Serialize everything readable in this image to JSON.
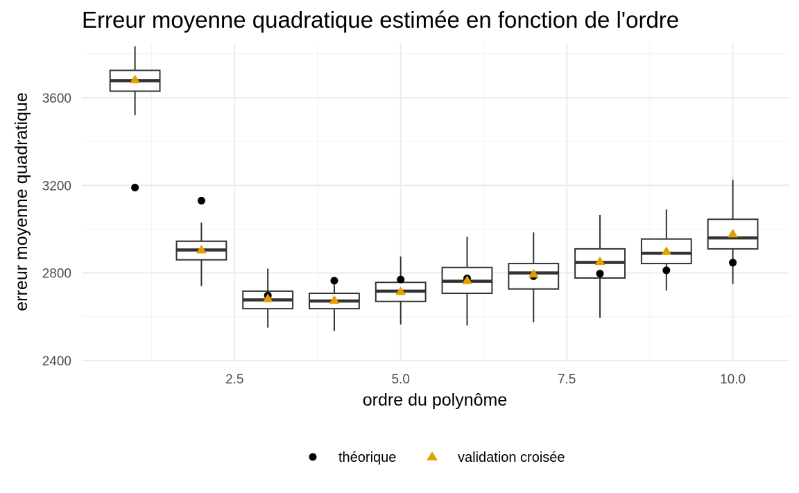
{
  "chart_data": {
    "type": "box",
    "title": "Erreur moyenne quadratique estimée en fonction de l'ordre",
    "xlabel": "ordre du polynôme",
    "ylabel": "erreur moyenne quadratique",
    "xlim": [
      0.2,
      10.85
    ],
    "ylim": [
      2400,
      3850
    ],
    "x_ticks": [
      2.5,
      5.0,
      7.5,
      10.0
    ],
    "x_tick_labels": [
      "2.5",
      "5.0",
      "7.5",
      "10.0"
    ],
    "y_ticks": [
      2400,
      2800,
      3200,
      3600
    ],
    "y_tick_labels": [
      "2400",
      "2800",
      "3200",
      "3600"
    ],
    "grid": true,
    "legend_position": "bottom",
    "boxes": [
      {
        "x": 1,
        "whisker_low": 3520,
        "q1": 3630,
        "median": 3678,
        "q3": 3725,
        "whisker_high": 3835
      },
      {
        "x": 2,
        "whisker_low": 2740,
        "q1": 2860,
        "median": 2905,
        "q3": 2945,
        "whisker_high": 3030
      },
      {
        "x": 3,
        "whisker_low": 2550,
        "q1": 2637,
        "median": 2677,
        "q3": 2717,
        "whisker_high": 2820
      },
      {
        "x": 4,
        "whisker_low": 2535,
        "q1": 2637,
        "median": 2672,
        "q3": 2707,
        "whisker_high": 2760
      },
      {
        "x": 5,
        "whisker_low": 2565,
        "q1": 2670,
        "median": 2717,
        "q3": 2757,
        "whisker_high": 2875
      },
      {
        "x": 6,
        "whisker_low": 2560,
        "q1": 2707,
        "median": 2762,
        "q3": 2825,
        "whisker_high": 2965
      },
      {
        "x": 7,
        "whisker_low": 2575,
        "q1": 2727,
        "median": 2800,
        "q3": 2843,
        "whisker_high": 2985
      },
      {
        "x": 8,
        "whisker_low": 2595,
        "q1": 2777,
        "median": 2848,
        "q3": 2910,
        "whisker_high": 3065
      },
      {
        "x": 9,
        "whisker_low": 2720,
        "q1": 2843,
        "median": 2890,
        "q3": 2955,
        "whisker_high": 3090
      },
      {
        "x": 10,
        "whisker_low": 2750,
        "q1": 2910,
        "median": 2960,
        "q3": 3045,
        "whisker_high": 3225
      }
    ],
    "series": [
      {
        "name": "théorique",
        "marker": "circle",
        "color": "#000000",
        "x": [
          1,
          2,
          3,
          4,
          5,
          6,
          7,
          8,
          9,
          10
        ],
        "y": [
          3190,
          3130,
          2697,
          2765,
          2770,
          2775,
          2785,
          2797,
          2812,
          2847
        ]
      },
      {
        "name": "validation croisée",
        "marker": "triangle",
        "color": "#E69F00",
        "x": [
          1,
          2,
          3,
          4,
          5,
          6,
          7,
          8,
          9,
          10
        ],
        "y": [
          3682,
          2905,
          2682,
          2675,
          2715,
          2765,
          2795,
          2852,
          2898,
          2978
        ]
      }
    ]
  }
}
